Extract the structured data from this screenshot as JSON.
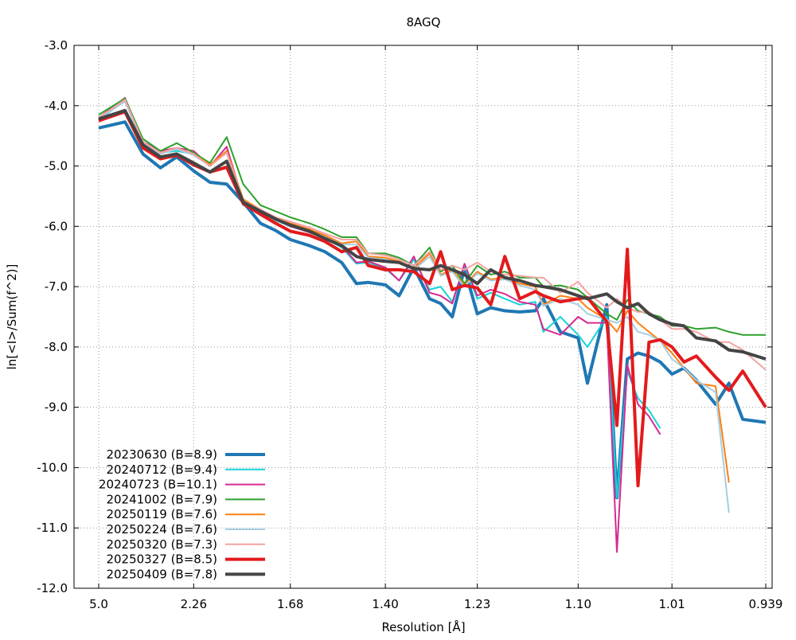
{
  "chart_data": {
    "type": "line",
    "title": "8AGQ",
    "xlabel": "Resolution [Å]",
    "ylabel": "ln[<I>/Sum(f^2)]",
    "x_scale": "1/d^2",
    "x_ticks": [
      "5.0",
      "2.26",
      "1.68",
      "1.40",
      "1.23",
      "1.10",
      "1.01",
      "0.939"
    ],
    "ylim": [
      -12.0,
      -3.0
    ],
    "y_ticks": [
      "-3.0",
      "-4.0",
      "-5.0",
      "-6.0",
      "-7.0",
      "-8.0",
      "-9.0",
      "-10.0",
      "-11.0",
      "-12.0"
    ],
    "grid": true,
    "legend_position": "bottom-left",
    "series": [
      {
        "name": "20230630 (B=8.9)",
        "color": "#1f77b4",
        "width": 4,
        "x": [
          5.0,
          3.47,
          2.98,
          2.66,
          2.44,
          2.26,
          2.12,
          2.0,
          1.9,
          1.81,
          1.74,
          1.68,
          1.61,
          1.56,
          1.51,
          1.47,
          1.44,
          1.4,
          1.37,
          1.34,
          1.31,
          1.29,
          1.27,
          1.25,
          1.23,
          1.21,
          1.19,
          1.17,
          1.15,
          1.14,
          1.12,
          1.1,
          1.09,
          1.07,
          1.06,
          1.05,
          1.04,
          1.03,
          1.02,
          1.01,
          1.0,
          0.99,
          0.975,
          0.965,
          0.955,
          0.939
        ],
        "y": [
          -4.37,
          -4.27,
          -4.8,
          -5.03,
          -4.85,
          -5.08,
          -5.27,
          -5.3,
          -5.6,
          -5.95,
          -6.07,
          -6.22,
          -6.32,
          -6.42,
          -6.6,
          -6.95,
          -6.93,
          -6.97,
          -7.15,
          -6.68,
          -7.2,
          -7.28,
          -7.5,
          -6.7,
          -7.45,
          -7.35,
          -7.4,
          -7.42,
          -7.4,
          -7.2,
          -7.75,
          -7.85,
          -8.6,
          -7.3,
          -10.5,
          -8.2,
          -8.1,
          -8.15,
          -8.25,
          -8.45,
          -8.35,
          -8.55,
          -8.95,
          -8.6,
          -9.2,
          -9.25
        ]
      },
      {
        "name": "20240712 (B=9.4)",
        "color": "#17d3d8",
        "width": 2,
        "x": [
          5.0,
          3.47,
          2.98,
          2.66,
          2.44,
          2.26,
          2.12,
          2.0,
          1.9,
          1.81,
          1.74,
          1.68,
          1.61,
          1.56,
          1.51,
          1.47,
          1.44,
          1.4,
          1.37,
          1.34,
          1.31,
          1.29,
          1.27,
          1.25,
          1.23,
          1.21,
          1.19,
          1.17,
          1.15,
          1.14,
          1.12,
          1.1,
          1.09,
          1.07,
          1.06,
          1.05,
          1.04,
          1.03,
          1.02
        ],
        "y": [
          -4.25,
          -3.9,
          -4.65,
          -4.78,
          -4.75,
          -4.8,
          -5.0,
          -4.75,
          -5.65,
          -5.75,
          -5.9,
          -6.0,
          -6.1,
          -6.2,
          -6.35,
          -6.62,
          -6.6,
          -6.7,
          -6.9,
          -6.55,
          -7.05,
          -7.0,
          -7.25,
          -6.65,
          -7.2,
          -7.1,
          -7.2,
          -7.3,
          -7.25,
          -7.75,
          -7.5,
          -7.8,
          -8.0,
          -7.5,
          -10.5,
          -8.4,
          -8.85,
          -9.05,
          -9.35
        ]
      },
      {
        "name": "20240723 (B=10.1)",
        "color": "#d62a90",
        "width": 2,
        "x": [
          5.0,
          3.47,
          2.98,
          2.66,
          2.44,
          2.26,
          2.12,
          2.0,
          1.9,
          1.81,
          1.74,
          1.68,
          1.61,
          1.56,
          1.51,
          1.47,
          1.44,
          1.4,
          1.37,
          1.34,
          1.31,
          1.29,
          1.27,
          1.25,
          1.23,
          1.21,
          1.19,
          1.17,
          1.15,
          1.14,
          1.12,
          1.1,
          1.09,
          1.07,
          1.06,
          1.05,
          1.04,
          1.03,
          1.02
        ],
        "y": [
          -4.2,
          -3.87,
          -4.6,
          -4.75,
          -4.7,
          -4.75,
          -5.0,
          -4.68,
          -5.6,
          -5.72,
          -5.88,
          -6.0,
          -6.1,
          -6.2,
          -6.32,
          -6.6,
          -6.58,
          -6.68,
          -6.9,
          -6.5,
          -7.1,
          -7.15,
          -7.28,
          -6.62,
          -7.15,
          -7.05,
          -7.12,
          -7.25,
          -7.3,
          -7.7,
          -7.8,
          -7.5,
          -7.6,
          -7.6,
          -11.4,
          -8.3,
          -8.95,
          -9.15,
          -9.45
        ]
      },
      {
        "name": "20241002 (B=7.9)",
        "color": "#2ca02c",
        "width": 2,
        "x": [
          5.0,
          3.47,
          2.98,
          2.66,
          2.44,
          2.26,
          2.12,
          2.0,
          1.9,
          1.81,
          1.74,
          1.68,
          1.61,
          1.56,
          1.51,
          1.47,
          1.44,
          1.4,
          1.37,
          1.34,
          1.31,
          1.29,
          1.27,
          1.25,
          1.23,
          1.21,
          1.19,
          1.17,
          1.15,
          1.14,
          1.12,
          1.1,
          1.09,
          1.07,
          1.06,
          1.05,
          1.04,
          1.03,
          1.02,
          1.01,
          1.0,
          0.99,
          0.975,
          0.965,
          0.955,
          0.939
        ],
        "y": [
          -4.15,
          -3.88,
          -4.55,
          -4.75,
          -4.62,
          -4.78,
          -4.95,
          -4.52,
          -5.3,
          -5.65,
          -5.75,
          -5.85,
          -5.95,
          -6.05,
          -6.18,
          -6.18,
          -6.45,
          -6.45,
          -6.52,
          -6.65,
          -6.35,
          -6.75,
          -6.65,
          -6.95,
          -6.65,
          -6.8,
          -6.75,
          -6.85,
          -6.85,
          -7.0,
          -6.98,
          -7.05,
          -7.18,
          -7.45,
          -7.55,
          -7.22,
          -7.4,
          -7.45,
          -7.5,
          -7.65,
          -7.65,
          -7.7,
          -7.68,
          -7.75,
          -7.8,
          -7.8
        ]
      },
      {
        "name": "20250119 (B=7.6)",
        "color": "#ff7f0e",
        "width": 2,
        "x": [
          5.0,
          3.47,
          2.98,
          2.66,
          2.44,
          2.26,
          2.12,
          2.0,
          1.9,
          1.81,
          1.74,
          1.68,
          1.61,
          1.56,
          1.51,
          1.47,
          1.44,
          1.4,
          1.37,
          1.34,
          1.31,
          1.29,
          1.27,
          1.25,
          1.23,
          1.21,
          1.19,
          1.17,
          1.15,
          1.14,
          1.12,
          1.1,
          1.09,
          1.07,
          1.06,
          1.05,
          1.04,
          1.03,
          1.02,
          1.01,
          1.0,
          0.99,
          0.975,
          0.965
        ],
        "y": [
          -4.2,
          -3.92,
          -4.62,
          -4.78,
          -4.7,
          -4.8,
          -4.98,
          -4.75,
          -5.55,
          -5.72,
          -5.85,
          -5.95,
          -6.05,
          -6.15,
          -6.28,
          -6.25,
          -6.5,
          -6.52,
          -6.58,
          -6.7,
          -6.45,
          -6.8,
          -6.72,
          -6.98,
          -6.75,
          -6.88,
          -6.85,
          -6.95,
          -7.0,
          -7.3,
          -7.15,
          -7.2,
          -7.35,
          -7.55,
          -7.75,
          -7.4,
          -7.6,
          -7.75,
          -7.9,
          -8.1,
          -8.35,
          -8.6,
          -8.65,
          -10.25
        ]
      },
      {
        "name": "20250224 (B=7.6)",
        "color": "#a6cee3",
        "width": 2,
        "x": [
          5.0,
          3.47,
          2.98,
          2.66,
          2.44,
          2.26,
          2.12,
          2.0,
          1.9,
          1.81,
          1.74,
          1.68,
          1.61,
          1.56,
          1.51,
          1.47,
          1.44,
          1.4,
          1.37,
          1.34,
          1.31,
          1.29,
          1.27,
          1.25,
          1.23,
          1.21,
          1.19,
          1.17,
          1.15,
          1.14,
          1.12,
          1.1,
          1.09,
          1.07,
          1.06,
          1.05,
          1.04,
          1.03,
          1.02,
          1.01,
          1.0,
          0.99,
          0.975,
          0.965
        ],
        "y": [
          -4.22,
          -3.93,
          -4.63,
          -4.8,
          -4.72,
          -4.82,
          -5.0,
          -4.78,
          -5.58,
          -5.75,
          -5.88,
          -5.98,
          -6.08,
          -6.18,
          -6.3,
          -6.3,
          -6.52,
          -6.55,
          -6.6,
          -6.72,
          -6.5,
          -6.82,
          -6.75,
          -7.0,
          -6.78,
          -6.9,
          -6.88,
          -6.98,
          -7.05,
          -7.32,
          -7.2,
          -7.3,
          -7.45,
          -7.55,
          -7.6,
          -7.5,
          -7.75,
          -7.8,
          -7.9,
          -8.2,
          -8.35,
          -8.55,
          -8.75,
          -10.75
        ]
      },
      {
        "name": "20250320 (B=7.3)",
        "color": "#f4a3a3",
        "width": 2,
        "x": [
          5.0,
          3.47,
          2.98,
          2.66,
          2.44,
          2.26,
          2.12,
          2.0,
          1.9,
          1.81,
          1.74,
          1.68,
          1.61,
          1.56,
          1.51,
          1.47,
          1.44,
          1.4,
          1.37,
          1.34,
          1.31,
          1.29,
          1.27,
          1.25,
          1.23,
          1.21,
          1.19,
          1.17,
          1.15,
          1.14,
          1.12,
          1.1,
          1.09,
          1.07,
          1.06,
          1.05,
          1.04,
          1.03,
          1.02,
          1.01,
          1.0,
          0.99,
          0.975,
          0.965,
          0.955,
          0.939
        ],
        "y": [
          -4.2,
          -3.9,
          -4.6,
          -4.78,
          -4.7,
          -4.8,
          -5.0,
          -4.78,
          -5.58,
          -5.72,
          -5.85,
          -5.92,
          -6.02,
          -6.12,
          -6.22,
          -6.22,
          -6.45,
          -6.48,
          -6.55,
          -6.65,
          -6.42,
          -6.72,
          -6.65,
          -6.72,
          -6.6,
          -6.75,
          -6.8,
          -6.82,
          -6.85,
          -6.85,
          -7.1,
          -6.92,
          -7.1,
          -7.35,
          -7.2,
          -7.35,
          -7.42,
          -7.42,
          -7.55,
          -7.7,
          -7.7,
          -7.75,
          -7.92,
          -7.92,
          -8.05,
          -8.38
        ]
      },
      {
        "name": "20250327 (B=8.5)",
        "color": "#e31a1c",
        "width": 4,
        "x": [
          5.0,
          3.47,
          2.98,
          2.66,
          2.44,
          2.26,
          2.12,
          2.0,
          1.9,
          1.81,
          1.74,
          1.68,
          1.61,
          1.56,
          1.51,
          1.47,
          1.44,
          1.4,
          1.37,
          1.34,
          1.31,
          1.29,
          1.27,
          1.25,
          1.23,
          1.21,
          1.19,
          1.17,
          1.15,
          1.14,
          1.12,
          1.1,
          1.09,
          1.07,
          1.06,
          1.05,
          1.04,
          1.03,
          1.02,
          1.01,
          1.0,
          0.99,
          0.975,
          0.965,
          0.955,
          0.939
        ],
        "y": [
          -4.25,
          -4.1,
          -4.7,
          -4.88,
          -4.82,
          -4.98,
          -5.1,
          -5.02,
          -5.62,
          -5.8,
          -5.95,
          -6.08,
          -6.15,
          -6.25,
          -6.42,
          -6.35,
          -6.65,
          -6.72,
          -6.72,
          -6.75,
          -6.95,
          -6.42,
          -7.05,
          -6.98,
          -7.02,
          -7.3,
          -6.5,
          -7.2,
          -7.08,
          -7.15,
          -7.25,
          -7.2,
          -7.18,
          -7.58,
          -9.3,
          -6.38,
          -10.3,
          -7.92,
          -7.88,
          -8.0,
          -8.25,
          -8.15,
          -8.5,
          -8.72,
          -8.4,
          -9.0
        ]
      },
      {
        "name": "20250409 (B=7.8)",
        "color": "#444444",
        "width": 4,
        "x": [
          5.0,
          3.47,
          2.98,
          2.66,
          2.44,
          2.26,
          2.12,
          2.0,
          1.9,
          1.81,
          1.74,
          1.68,
          1.61,
          1.56,
          1.51,
          1.47,
          1.44,
          1.4,
          1.37,
          1.34,
          1.31,
          1.29,
          1.27,
          1.25,
          1.23,
          1.21,
          1.19,
          1.17,
          1.15,
          1.14,
          1.12,
          1.1,
          1.09,
          1.07,
          1.06,
          1.05,
          1.04,
          1.03,
          1.02,
          1.01,
          1.0,
          0.99,
          0.975,
          0.965,
          0.955,
          0.939
        ],
        "y": [
          -4.22,
          -4.08,
          -4.65,
          -4.85,
          -4.8,
          -4.95,
          -5.1,
          -4.92,
          -5.6,
          -5.75,
          -5.88,
          -5.98,
          -6.08,
          -6.2,
          -6.32,
          -6.5,
          -6.55,
          -6.58,
          -6.6,
          -6.7,
          -6.72,
          -6.65,
          -6.72,
          -6.8,
          -6.95,
          -6.72,
          -6.85,
          -6.9,
          -6.98,
          -7.0,
          -7.05,
          -7.15,
          -7.2,
          -7.12,
          -7.25,
          -7.35,
          -7.28,
          -7.45,
          -7.55,
          -7.62,
          -7.65,
          -7.85,
          -7.9,
          -8.05,
          -8.08,
          -8.2
        ]
      }
    ]
  }
}
